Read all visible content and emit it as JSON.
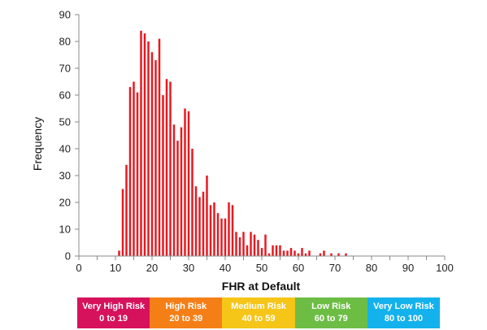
{
  "chart_data": {
    "type": "bar",
    "title": "",
    "xlabel": "FHR at Default",
    "ylabel": "Frequency",
    "xlim": [
      0,
      100
    ],
    "ylim": [
      0,
      90
    ],
    "xticks": [
      0,
      10,
      20,
      30,
      40,
      50,
      60,
      70,
      80,
      90,
      100
    ],
    "yticks": [
      0,
      10,
      20,
      30,
      40,
      50,
      60,
      70,
      80,
      90
    ],
    "grid": false,
    "bar_color": "#e8191f",
    "series": [
      {
        "x": [
          11,
          12,
          13,
          14,
          15,
          16,
          17,
          18,
          19,
          20,
          21,
          22,
          23,
          24,
          25,
          26,
          27,
          28,
          29,
          30,
          31,
          32,
          33,
          34,
          35,
          36,
          37,
          38,
          39,
          40,
          41,
          42,
          43,
          44,
          45,
          46,
          47,
          48,
          49,
          50,
          51,
          52,
          53,
          54,
          55,
          56,
          57,
          58,
          59,
          60,
          61,
          62,
          63,
          64,
          65,
          66,
          67,
          68,
          69,
          70,
          71,
          72,
          73
        ],
        "values": [
          2,
          25,
          34,
          63,
          65,
          61,
          84,
          83,
          80,
          76,
          73,
          81,
          60,
          66,
          65,
          49,
          43,
          48,
          55,
          54,
          40,
          26,
          22,
          24,
          30,
          19,
          20,
          16,
          14,
          14,
          20,
          19,
          9,
          7,
          9,
          4,
          9,
          8,
          6,
          3,
          8,
          1,
          4,
          4,
          4,
          2,
          2,
          3,
          2,
          1,
          3,
          1,
          2,
          0,
          0,
          1,
          2,
          0,
          1,
          0,
          1,
          0,
          1
        ]
      }
    ],
    "risk_bands": [
      {
        "name": "Very High Risk",
        "range": "0 to 19",
        "color": "#d6125c"
      },
      {
        "name": "High Risk",
        "range": "20 to 39",
        "color": "#f57f17"
      },
      {
        "name": "Medium Risk",
        "range": "40 to 59",
        "color": "#f5c518"
      },
      {
        "name": "Low Risk",
        "range": "60 to 79",
        "color": "#6dbd45"
      },
      {
        "name": "Very Low Risk",
        "range": "80 to 100",
        "color": "#14b2ec"
      }
    ]
  }
}
